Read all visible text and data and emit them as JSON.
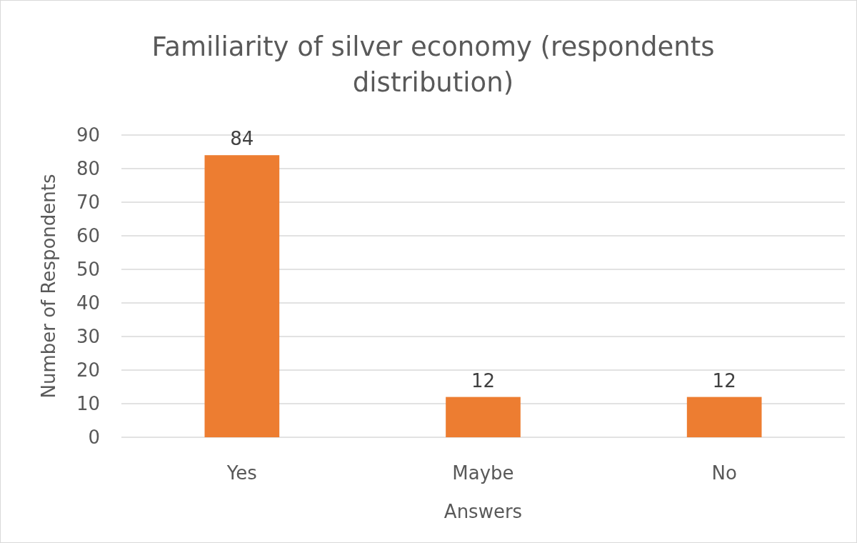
{
  "chart_data": {
    "type": "bar",
    "title": "Familiarity of silver economy (respondents distribution)",
    "xlabel": "Answers",
    "ylabel": "Number of Respondents",
    "categories": [
      "Yes",
      "Maybe",
      "No"
    ],
    "values": [
      84,
      12,
      12
    ],
    "color": "#ed7d31",
    "ylim": [
      0,
      90
    ],
    "yticks": [
      0,
      10,
      20,
      30,
      40,
      50,
      60,
      70,
      80,
      90
    ],
    "grid": "y",
    "data_labels": true
  }
}
